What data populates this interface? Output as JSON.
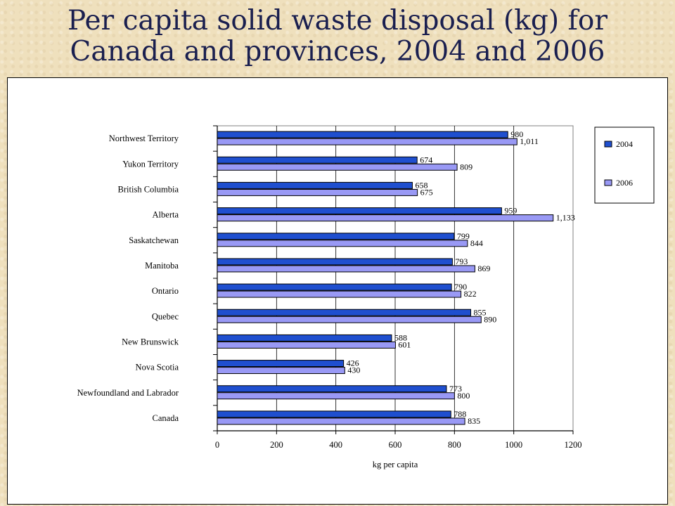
{
  "slide": {
    "title_line1": "Per capita solid waste disposal (kg) for",
    "title_line2": "Canada and provinces, 2004 and 2006"
  },
  "chart_data": {
    "type": "bar",
    "orientation": "horizontal",
    "title": "",
    "xlabel": "kg per capita",
    "ylabel": "",
    "xlim": [
      0,
      1200
    ],
    "xticks": [
      "0",
      "200",
      "400",
      "600",
      "800",
      "1000",
      "1200"
    ],
    "categories": [
      "Northwest Territory",
      "Yukon Territory",
      "British Columbia",
      "Alberta",
      "Saskatchewan",
      "Manitoba",
      "Ontario",
      "Quebec",
      "New Brunswick",
      "Nova Scotia",
      "Newfoundland and Labrador",
      "Canada"
    ],
    "series": [
      {
        "name": "2004",
        "color": "#1f4fcf",
        "values": [
          980,
          674,
          658,
          959,
          799,
          793,
          790,
          855,
          588,
          426,
          773,
          788
        ],
        "labels": [
          "980",
          "674",
          "658",
          "959",
          "799",
          "793",
          "790",
          "855",
          "588",
          "426",
          "773",
          "788"
        ]
      },
      {
        "name": "2006",
        "color": "#9999f5",
        "values": [
          1011,
          809,
          675,
          1133,
          844,
          869,
          822,
          890,
          601,
          430,
          800,
          835
        ],
        "labels": [
          "1,011",
          "809",
          "675",
          "1,133",
          "844",
          "869",
          "822",
          "890",
          "601",
          "430",
          "800",
          "835"
        ]
      }
    ],
    "grid": "vertical",
    "legend_position": "right"
  }
}
